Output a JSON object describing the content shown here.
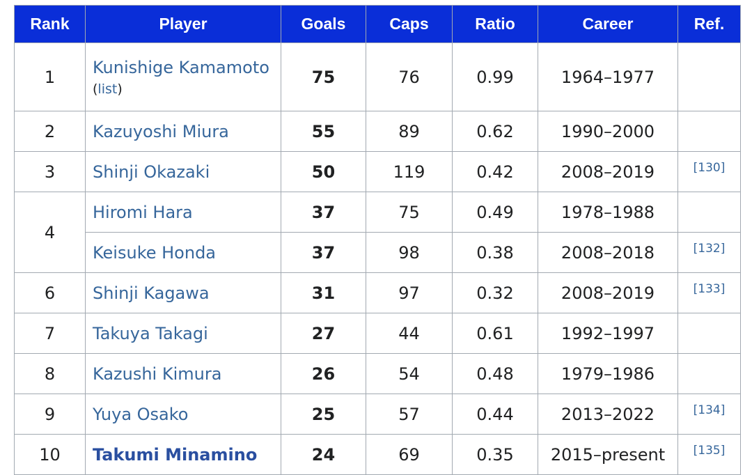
{
  "table": {
    "headers": [
      "Rank",
      "Player",
      "Goals",
      "Caps",
      "Ratio",
      "Career",
      "Ref."
    ],
    "rows": [
      {
        "rank": "1",
        "player": "Kunishige Kamamoto",
        "note_open": "(",
        "note_link": "list",
        "note_close": ")",
        "goals": "75",
        "caps": "76",
        "ratio": "0.99",
        "career": "1964–1977",
        "ref": ""
      },
      {
        "rank": "2",
        "player": "Kazuyoshi Miura",
        "goals": "55",
        "caps": "89",
        "ratio": "0.62",
        "career": "1990–2000",
        "ref": ""
      },
      {
        "rank": "3",
        "player": "Shinji Okazaki",
        "goals": "50",
        "caps": "119",
        "ratio": "0.42",
        "career": "2008–2019",
        "ref": "[130]"
      },
      {
        "rank": "4",
        "player": "Hiromi Hara",
        "goals": "37",
        "caps": "75",
        "ratio": "0.49",
        "career": "1978–1988",
        "ref": ""
      },
      {
        "rank": "",
        "player": "Keisuke Honda",
        "goals": "37",
        "caps": "98",
        "ratio": "0.38",
        "career": "2008–2018",
        "ref": "[132]"
      },
      {
        "rank": "6",
        "player": "Shinji Kagawa",
        "goals": "31",
        "caps": "97",
        "ratio": "0.32",
        "career": "2008–2019",
        "ref": "[133]"
      },
      {
        "rank": "7",
        "player": "Takuya Takagi",
        "goals": "27",
        "caps": "44",
        "ratio": "0.61",
        "career": "1992–1997",
        "ref": ""
      },
      {
        "rank": "8",
        "player": "Kazushi Kimura",
        "goals": "26",
        "caps": "54",
        "ratio": "0.48",
        "career": "1979–1986",
        "ref": ""
      },
      {
        "rank": "9",
        "player": "Yuya Osako",
        "goals": "25",
        "caps": "57",
        "ratio": "0.44",
        "career": "2013–2022",
        "ref": "[134]"
      },
      {
        "rank": "10",
        "player": "Takumi Minamino",
        "goals": "24",
        "caps": "69",
        "ratio": "0.35",
        "career": "2015–present",
        "ref": "[135]"
      }
    ]
  },
  "colors": {
    "header_background": "#0a2ed8",
    "link": "#36669b",
    "border": "#a2a9b1"
  }
}
